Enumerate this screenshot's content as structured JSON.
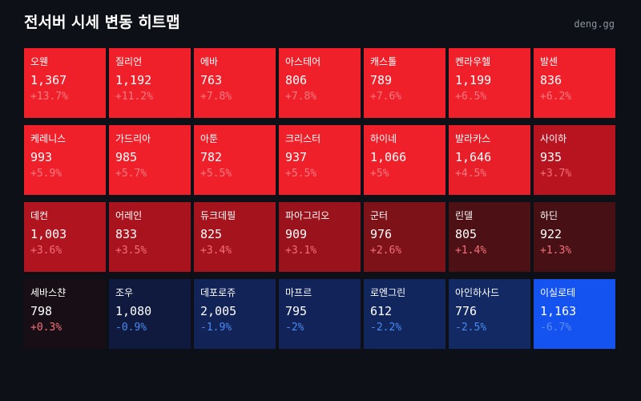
{
  "header": {
    "title": "전서버 시세 변동 히트맵",
    "site": "deng.gg"
  },
  "cells": [
    {
      "name": "오웬",
      "price": "1,367",
      "change": "+13.7%",
      "bg": "#f0202b",
      "change_color": "#f77a82"
    },
    {
      "name": "질리언",
      "price": "1,192",
      "change": "+11.2%",
      "bg": "#f0202b",
      "change_color": "#f77a82"
    },
    {
      "name": "에바",
      "price": "763",
      "change": "+7.8%",
      "bg": "#f0202b",
      "change_color": "#f77a82"
    },
    {
      "name": "아스테어",
      "price": "806",
      "change": "+7.8%",
      "bg": "#f0202b",
      "change_color": "#f77a82"
    },
    {
      "name": "캐스톨",
      "price": "789",
      "change": "+7.6%",
      "bg": "#f0202b",
      "change_color": "#f77a82"
    },
    {
      "name": "켄라우헬",
      "price": "1,199",
      "change": "+6.5%",
      "bg": "#f0202b",
      "change_color": "#f77a82"
    },
    {
      "name": "발센",
      "price": "836",
      "change": "+6.2%",
      "bg": "#f0202b",
      "change_color": "#f77a82"
    },
    {
      "name": "케레니스",
      "price": "993",
      "change": "+5.9%",
      "bg": "#f0202b",
      "change_color": "#f77a82"
    },
    {
      "name": "가드리아",
      "price": "985",
      "change": "+5.7%",
      "bg": "#f0202b",
      "change_color": "#f77a82"
    },
    {
      "name": "아툰",
      "price": "782",
      "change": "+5.5%",
      "bg": "#f0202b",
      "change_color": "#f77a82"
    },
    {
      "name": "크리스터",
      "price": "937",
      "change": "+5.5%",
      "bg": "#f0202b",
      "change_color": "#f77a82"
    },
    {
      "name": "하이네",
      "price": "1,066",
      "change": "+5%",
      "bg": "#f0202b",
      "change_color": "#f77a82"
    },
    {
      "name": "발라카스",
      "price": "1,646",
      "change": "+4.5%",
      "bg": "#e81e28",
      "change_color": "#f77a82"
    },
    {
      "name": "사이하",
      "price": "935",
      "change": "+3.7%",
      "bg": "#b8141f",
      "change_color": "#f4707a"
    },
    {
      "name": "데컨",
      "price": "1,003",
      "change": "+3.6%",
      "bg": "#b0151f",
      "change_color": "#f4707a"
    },
    {
      "name": "어레인",
      "price": "833",
      "change": "+3.5%",
      "bg": "#a8131d",
      "change_color": "#f4707a"
    },
    {
      "name": "듀크데필",
      "price": "825",
      "change": "+3.4%",
      "bg": "#a5131c",
      "change_color": "#f4707a"
    },
    {
      "name": "파아그리오",
      "price": "909",
      "change": "+3.1%",
      "bg": "#9a121b",
      "change_color": "#f4707a"
    },
    {
      "name": "군터",
      "price": "976",
      "change": "+2.6%",
      "bg": "#7d1219",
      "change_color": "#f4707a"
    },
    {
      "name": "린델",
      "price": "805",
      "change": "+1.4%",
      "bg": "#4d1015",
      "change_color": "#f4707a"
    },
    {
      "name": "하딘",
      "price": "922",
      "change": "+1.3%",
      "bg": "#471015",
      "change_color": "#f4707a"
    },
    {
      "name": "세바스챤",
      "price": "798",
      "change": "+0.3%",
      "bg": "#180f16",
      "change_color": "#f4707a"
    },
    {
      "name": "조우",
      "price": "1,080",
      "change": "-0.9%",
      "bg": "#0f1a3e",
      "change_color": "#4a8af2"
    },
    {
      "name": "데포로쥬",
      "price": "2,005",
      "change": "-1.9%",
      "bg": "#112357",
      "change_color": "#4a8af2"
    },
    {
      "name": "마프르",
      "price": "795",
      "change": "-2%",
      "bg": "#112358",
      "change_color": "#4a8af2"
    },
    {
      "name": "로엔그린",
      "price": "612",
      "change": "-2.2%",
      "bg": "#12265e",
      "change_color": "#4a8af2"
    },
    {
      "name": "아인하사드",
      "price": "776",
      "change": "-2.5%",
      "bg": "#132963",
      "change_color": "#4a8af2"
    },
    {
      "name": "이실로테",
      "price": "1,163",
      "change": "-6.7%",
      "bg": "#1553f0",
      "change_color": "#5d8cf7"
    }
  ]
}
